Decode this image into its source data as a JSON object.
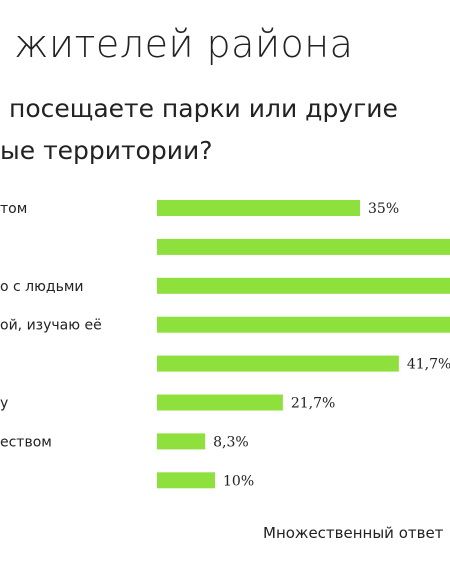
{
  "header": {
    "title": "жителей района",
    "question_lines": [
      "посещаете парки или другие",
      "ые территории?"
    ]
  },
  "footnote": "Множественный ответ",
  "chart_data": {
    "type": "bar",
    "orientation": "horizontal",
    "categories": [
      "том",
      "",
      "о с людьми",
      "ой, изучаю её",
      "",
      "у",
      "еством",
      ""
    ],
    "values": [
      35,
      null,
      null,
      null,
      41.7,
      21.7,
      8.3,
      10
    ],
    "value_labels": [
      "35%",
      "",
      "",
      "",
      "41,7%",
      "21,7%",
      "8,3%",
      "10%"
    ],
    "colors": {
      "bar": "#8ee03d"
    }
  }
}
